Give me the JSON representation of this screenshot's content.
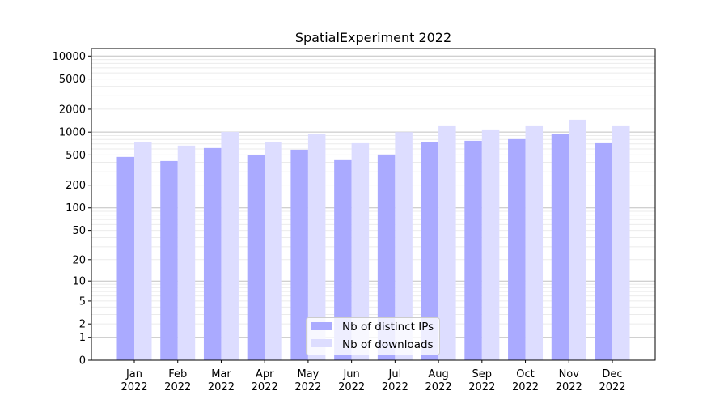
{
  "chart_data": {
    "type": "bar",
    "title": "SpatialExperiment 2022",
    "xlabel": "",
    "ylabel": "",
    "yscale": "log(1+y)",
    "ylim": [
      0,
      10000
    ],
    "yticks": [
      0,
      1,
      2,
      5,
      10,
      20,
      50,
      100,
      200,
      500,
      1000,
      2000,
      5000,
      10000
    ],
    "grid": true,
    "legend_position": "bottom-center",
    "categories": [
      "Jan\n2022",
      "Feb\n2022",
      "Mar\n2022",
      "Apr\n2022",
      "May\n2022",
      "Jun\n2022",
      "Jul\n2022",
      "Aug\n2022",
      "Sep\n2022",
      "Oct\n2022",
      "Nov\n2022",
      "Dec\n2022"
    ],
    "series": [
      {
        "name": "Nb of distinct IPs",
        "color": "#aaaaff",
        "values": [
          471,
          416,
          617,
          495,
          587,
          427,
          507,
          732,
          769,
          808,
          935,
          714
        ]
      },
      {
        "name": "Nb of downloads",
        "color": "#ddddff",
        "values": [
          732,
          664,
          1007,
          732,
          935,
          714,
          1000,
          1196,
          1084,
          1196,
          1455,
          1196
        ]
      }
    ]
  }
}
